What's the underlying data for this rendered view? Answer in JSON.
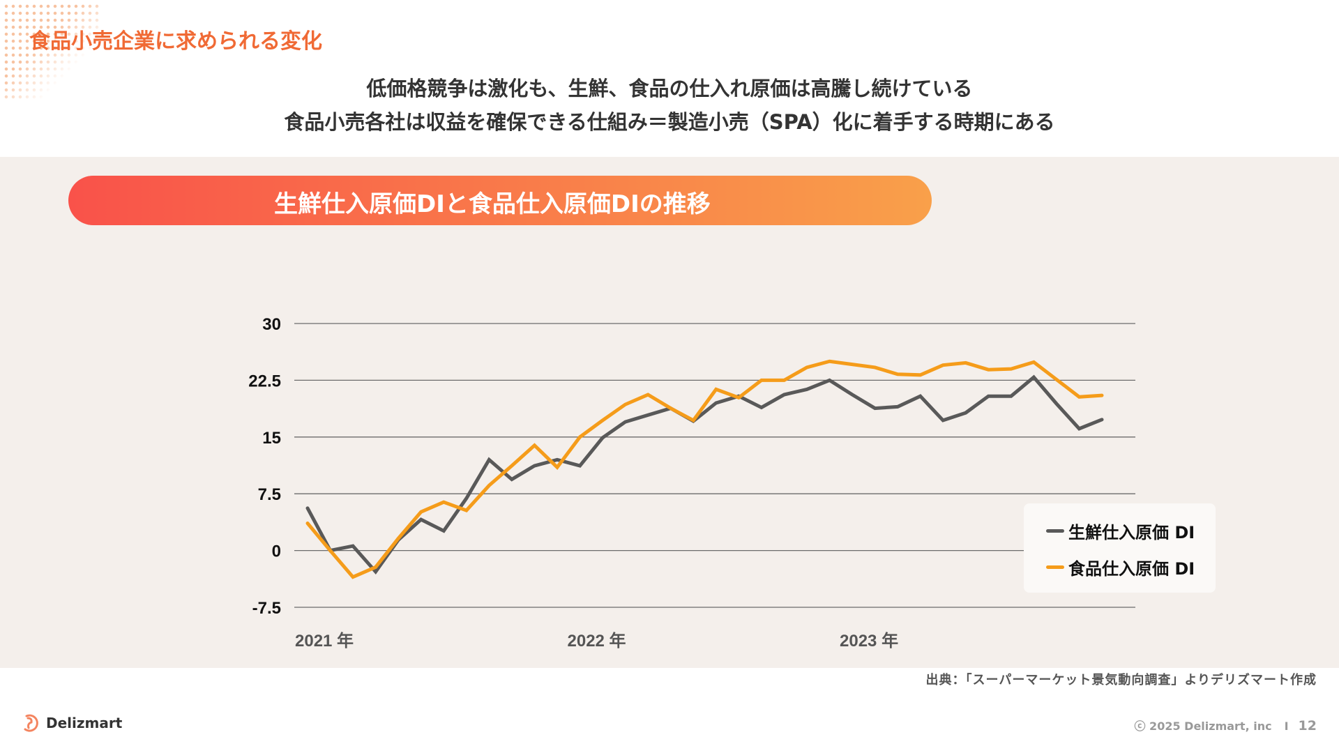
{
  "header": {
    "title": "食品小売企業に求められる変化",
    "subtitle_1": "低価格競争は激化も、生鮮、食品の仕入れ原価は高騰し続けている",
    "subtitle_2": "食品小売各社は収益を確保できる仕組み＝製造小売（SPA）化に着手する時期にある"
  },
  "banner": {
    "label": "生鮮仕入原価DIと食品仕入原価DIの推移"
  },
  "chart_data": {
    "type": "line",
    "title": "生鮮仕入原価DIと食品仕入原価DIの推移",
    "ylim": [
      -7.5,
      30
    ],
    "yticks": [
      "30",
      "22.5",
      "15",
      "7.5",
      "0",
      "-7.5"
    ],
    "ytick_values": [
      30,
      22.5,
      15,
      7.5,
      0,
      -7.5
    ],
    "xtick_labels": [
      {
        "label": "2021 年",
        "index": 0
      },
      {
        "label": "2022 年",
        "index": 12
      },
      {
        "label": "2023 年",
        "index": 24
      }
    ],
    "grid": true,
    "legend_position": "bottom-right",
    "series": [
      {
        "name": "生鮮仕入原価 DI",
        "color": "#595959",
        "values": [
          5.6,
          0,
          0.6,
          -2.8,
          1.4,
          4.1,
          2.6,
          6.9,
          12.0,
          9.4,
          11.2,
          12.0,
          11.2,
          14.9,
          17.0,
          17.9,
          18.8,
          17.1,
          19.5,
          20.4,
          18.9,
          20.6,
          21.3,
          22.5,
          20.6,
          18.8,
          19.0,
          20.4,
          17.2,
          18.2,
          20.4,
          20.4,
          22.9,
          19.4,
          16.1,
          17.3
        ]
      },
      {
        "name": "食品仕入原価 DI",
        "color": "#f59c1a",
        "values": [
          3.6,
          0,
          -3.5,
          -2.2,
          1.6,
          5.1,
          6.4,
          5.3,
          8.6,
          11.2,
          13.9,
          11.0,
          15.0,
          17.2,
          19.3,
          20.6,
          18.8,
          17.2,
          21.3,
          20.2,
          22.5,
          22.5,
          24.2,
          25.0,
          24.6,
          24.2,
          23.3,
          23.2,
          24.5,
          24.8,
          23.9,
          24.0,
          24.9,
          22.6,
          20.3,
          20.5
        ]
      }
    ]
  },
  "footer": {
    "source": "出典：「スーパーマーケット景気動向調査」よりデリズマート作成",
    "copyright": "ⓒ 2025 Delizmart, inc",
    "separator": "I",
    "page": "12",
    "logo_text": "Delizmart"
  }
}
